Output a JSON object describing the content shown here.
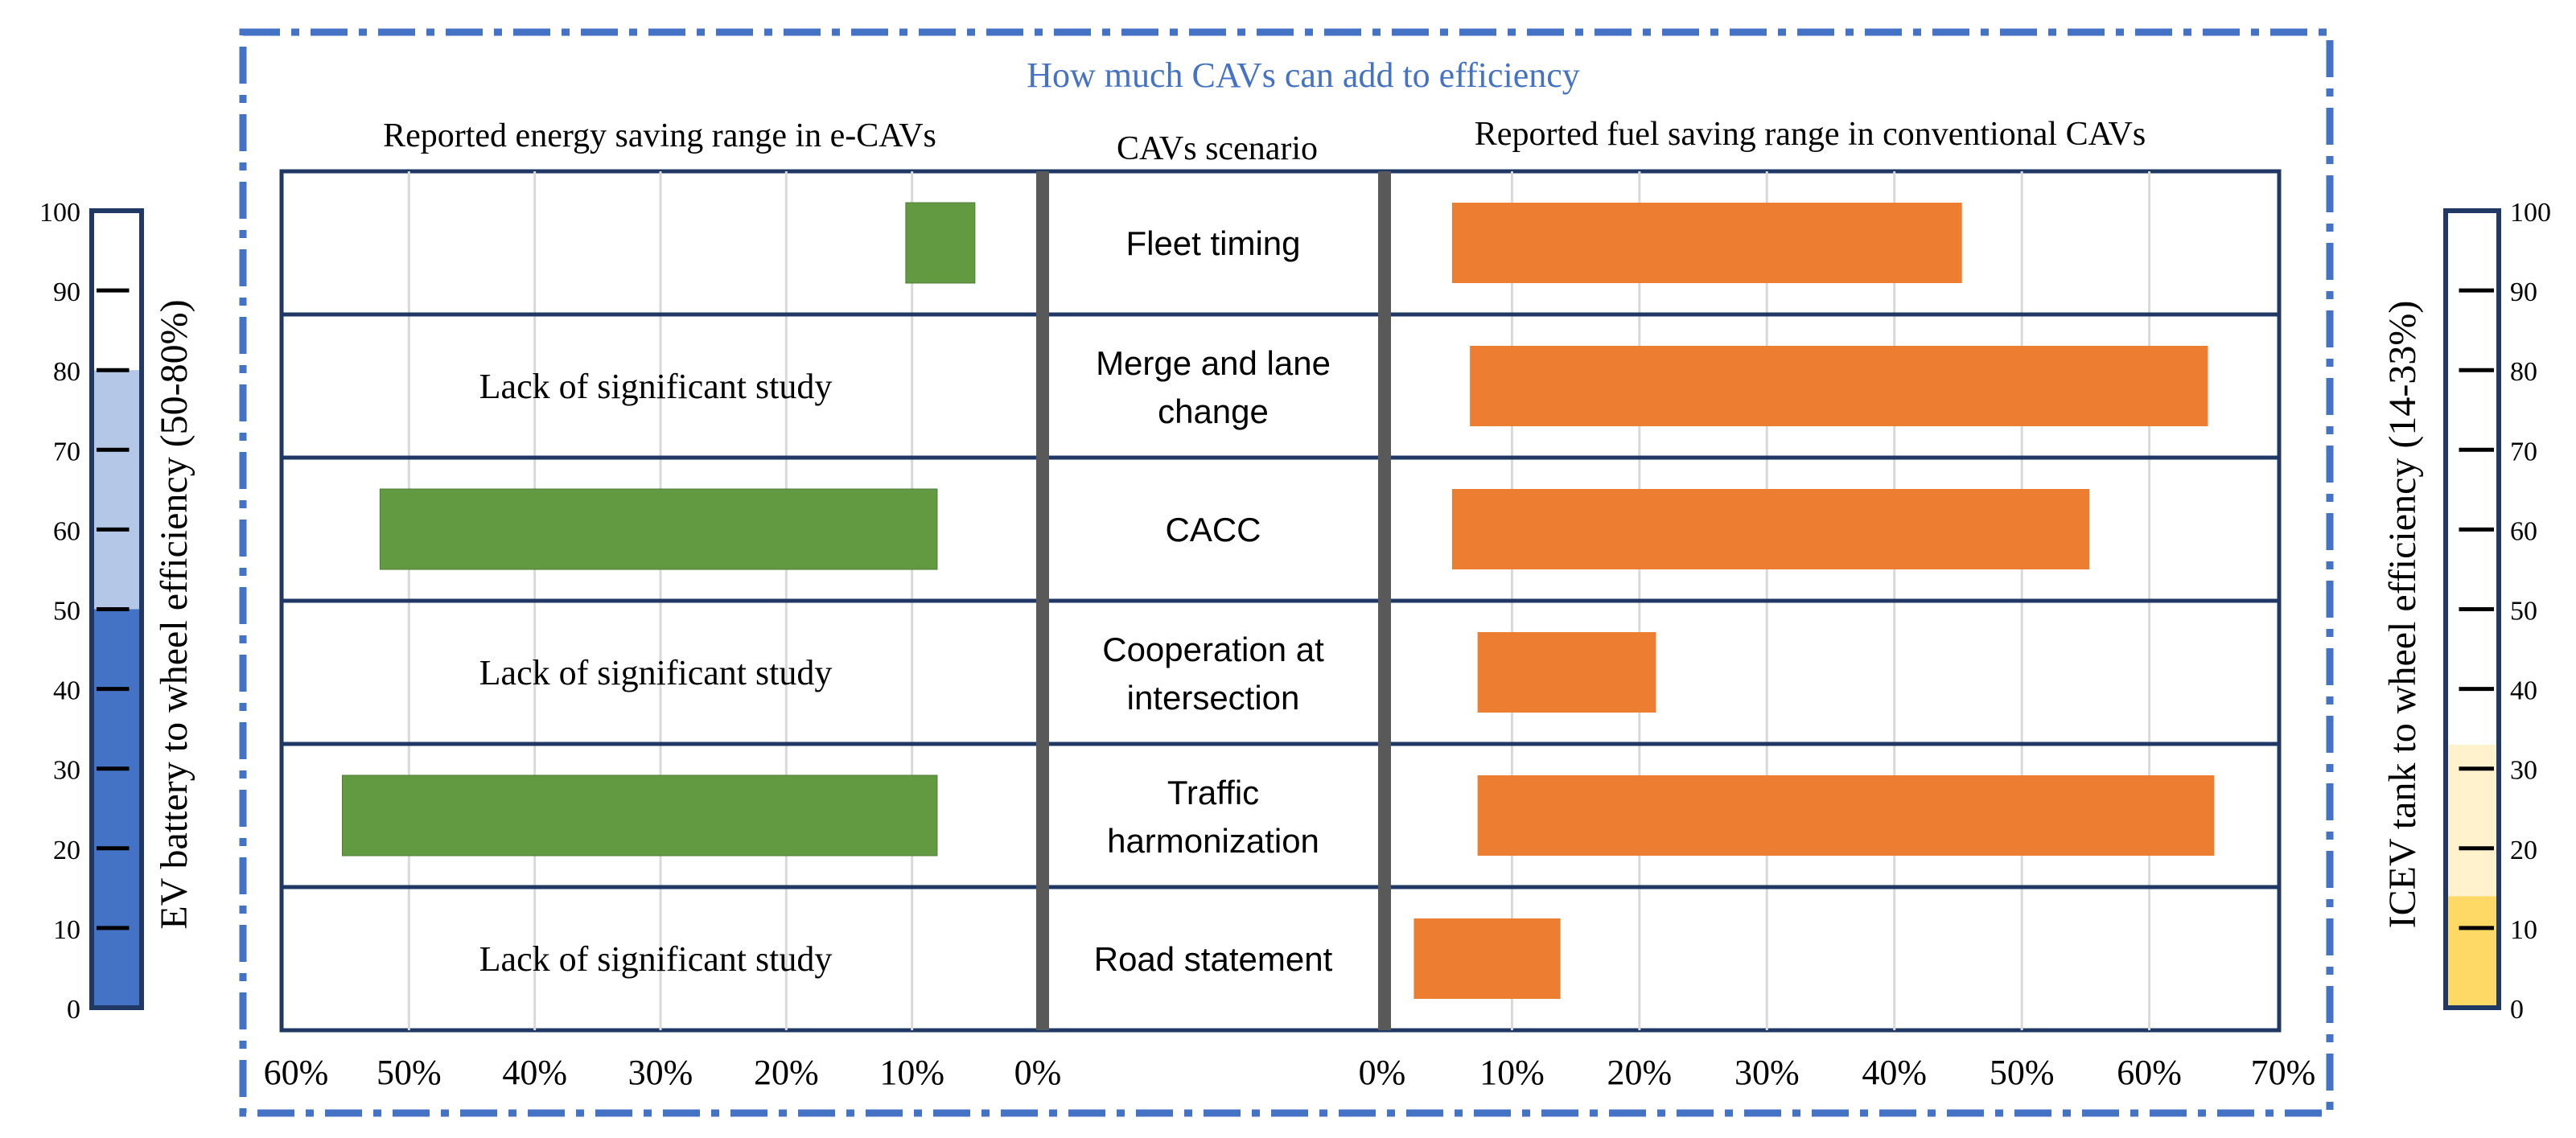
{
  "chart_data": {
    "type": "range-bar",
    "title": "How much CAVs can add to efficiency",
    "left_panel_title": "Reported energy saving range in e-CAVs",
    "center_title": "CAVs scenario",
    "right_panel_title": "Reported fuel saving range in conventional CAVs",
    "left_axis": {
      "ticks": [
        60,
        50,
        40,
        30,
        20,
        10,
        0
      ],
      "tick_labels": [
        "60%",
        "50%",
        "40%",
        "30%",
        "20%",
        "10%",
        "0%"
      ],
      "reversed": true
    },
    "right_axis": {
      "ticks": [
        0,
        10,
        20,
        30,
        40,
        50,
        60,
        70
      ],
      "tick_labels": [
        "0%",
        "10%",
        "20%",
        "30%",
        "40%",
        "50%",
        "60%",
        "70%"
      ]
    },
    "rows": [
      {
        "scenario": "Fleet timing",
        "ev_range": [
          5,
          10.5
        ],
        "ev_note": null,
        "icev_range": [
          5.3,
          45.3
        ]
      },
      {
        "scenario": "Merge and lane change",
        "ev_range": null,
        "ev_note": "Lack of significant study",
        "icev_range": [
          6.7,
          64.6
        ]
      },
      {
        "scenario": "CACC",
        "ev_range": [
          8,
          52.3
        ],
        "ev_note": null,
        "icev_range": [
          5.3,
          55.3
        ]
      },
      {
        "scenario": "Cooperation at intersection",
        "ev_range": null,
        "ev_note": "Lack of significant study",
        "icev_range": [
          7.3,
          21.3
        ]
      },
      {
        "scenario": "Traffic harmonization",
        "ev_range": [
          8,
          55.3
        ],
        "ev_note": null,
        "icev_range": [
          7.3,
          65.1
        ]
      },
      {
        "scenario": "Road statement",
        "ev_range": null,
        "ev_note": "Lack of significant study",
        "icev_range": [
          2.3,
          13.8
        ]
      }
    ],
    "ev_gauge": {
      "label": "EV battery to wheel efficiency (50-80%)",
      "ticks": [
        0,
        10,
        20,
        30,
        40,
        50,
        60,
        70,
        80,
        90,
        100
      ],
      "range_min": 50,
      "range_max": 80
    },
    "icev_gauge": {
      "label": "ICEV tank to wheel efficiency (14-33%)",
      "ticks": [
        0,
        10,
        20,
        30,
        40,
        50,
        60,
        70,
        80,
        90,
        100
      ],
      "range_min": 14,
      "range_max": 33
    },
    "colors": {
      "ev_bar": "#629a41",
      "icev_bar": "#ed7d31",
      "frame": "#1f3864",
      "dashed_border": "#4472c4",
      "divider": "#595959",
      "grid": "#d9d9d9",
      "ev_gauge_dark": "#4472c4",
      "ev_gauge_light": "#b4c7e7",
      "icev_gauge_dark": "#ffd966",
      "icev_gauge_light": "#fff2cc"
    }
  }
}
